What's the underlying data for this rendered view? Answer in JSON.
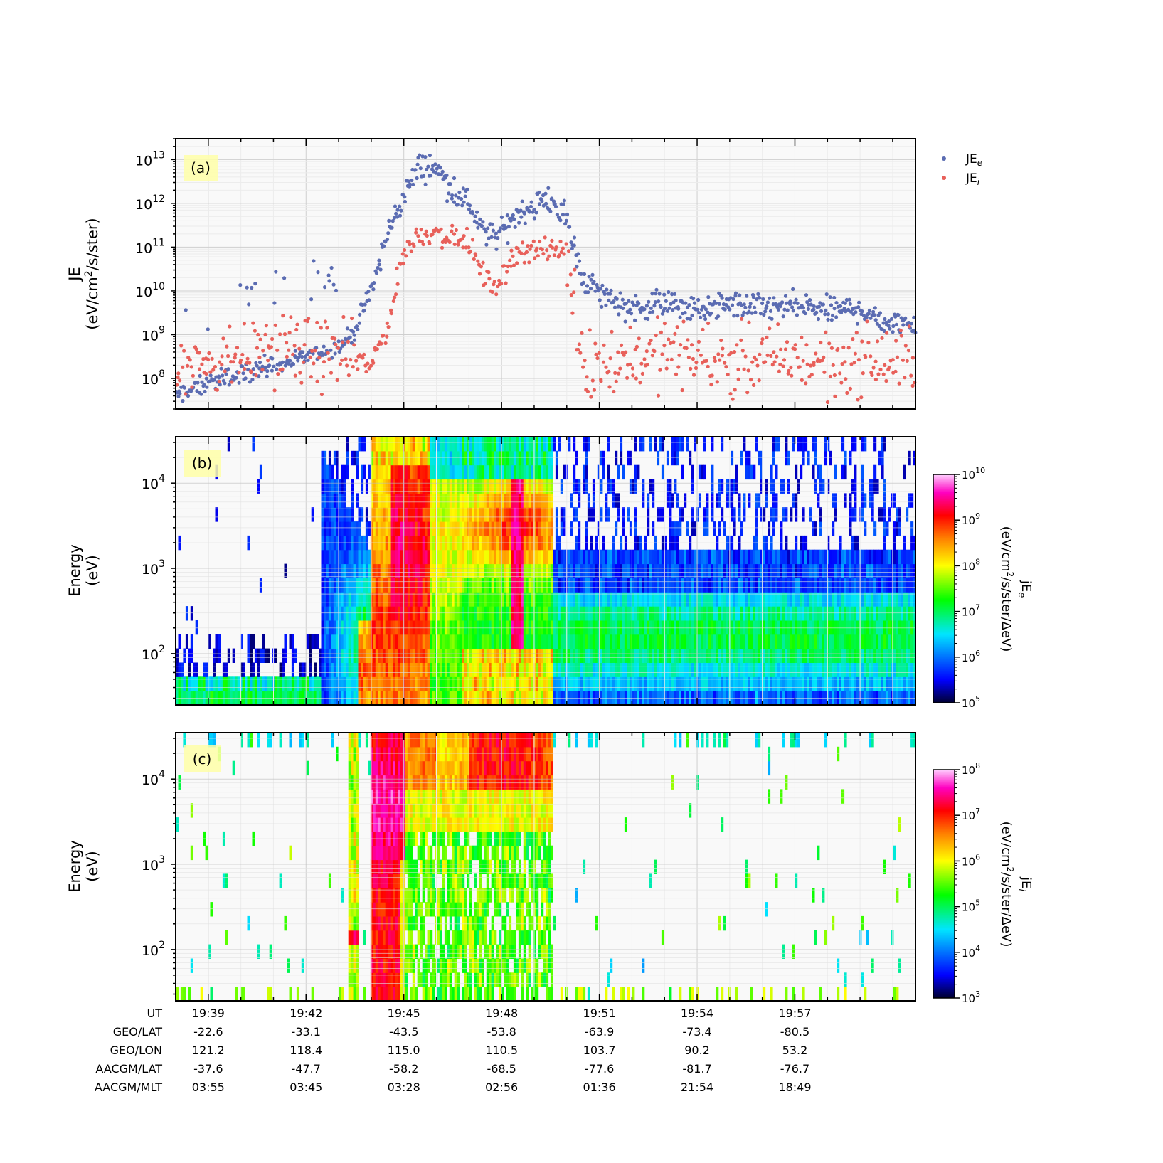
{
  "chart_data": [
    {
      "type": "scatter",
      "panel_label": "(a)",
      "ylabel_line1": "JE",
      "ylabel_line2_prefix": "(eV/cm",
      "ylabel_line2_sup": "2",
      "ylabel_line2_suffix": "/s/ster)",
      "yscale": "log",
      "ylim": [
        20000000.0,
        30000000000000.0
      ],
      "ytick_labels": [
        {
          "base": "10",
          "exp": "8",
          "value": 100000000.0
        },
        {
          "base": "10",
          "exp": "9",
          "value": 1000000000.0
        },
        {
          "base": "10",
          "exp": "10",
          "value": 10000000000.0
        },
        {
          "base": "10",
          "exp": "11",
          "value": 100000000000.0
        },
        {
          "base": "10",
          "exp": "12",
          "value": 1000000000000.0
        },
        {
          "base": "10",
          "exp": "13",
          "value": 10000000000000.0
        }
      ],
      "legend_location": "outside-upper-right",
      "series": [
        {
          "name": "JE_e",
          "legend_base": "JE",
          "legend_sub": "e",
          "color": "#5b6cb2",
          "x_minutes_from_19_39": [
            -1,
            0,
            1,
            2,
            3,
            4,
            4.5,
            5,
            5.5,
            6,
            6.5,
            7,
            7.5,
            8,
            8.5,
            9,
            9.5,
            10,
            10.5,
            11,
            11.5,
            12,
            13,
            14,
            15,
            16,
            17,
            18,
            19,
            20,
            21,
            21.7
          ],
          "log10_values": [
            7.6,
            7.9,
            8.1,
            8.3,
            8.5,
            8.7,
            9.1,
            10.0,
            11.3,
            12.2,
            12.85,
            12.8,
            12.3,
            12.0,
            11.25,
            11.3,
            11.8,
            11.95,
            12.1,
            11.6,
            10.3,
            9.95,
            9.6,
            9.75,
            9.55,
            9.7,
            9.6,
            9.65,
            9.55,
            9.6,
            9.2,
            9.35
          ]
        },
        {
          "name": "JE_i",
          "legend_base": "JE",
          "legend_sub": "i",
          "color": "#e8605a",
          "x_minutes_from_19_39": [
            -1,
            0,
            1,
            2,
            3,
            4,
            4.5,
            5,
            5.5,
            6,
            6.5,
            7,
            7.5,
            8,
            8.5,
            9,
            9.5,
            10,
            10.5,
            11,
            11.5,
            12,
            13,
            14,
            15,
            16,
            17,
            18,
            19,
            20,
            21,
            21.7
          ],
          "log10_values": [
            8.3,
            8.4,
            8.55,
            8.7,
            8.6,
            8.5,
            8.4,
            8.3,
            9.2,
            10.9,
            11.3,
            11.35,
            11.2,
            11.1,
            10.2,
            10.25,
            10.95,
            10.95,
            10.9,
            10.9,
            8.4,
            8.3,
            8.5,
            8.6,
            8.5,
            8.4,
            8.4,
            8.45,
            8.35,
            8.4,
            8.35,
            8.4
          ]
        }
      ]
    },
    {
      "type": "heatmap",
      "panel_label": "(b)",
      "ylabel_line1": "Energy",
      "ylabel_line2": "(eV)",
      "yscale": "log",
      "ylim_eV": [
        25,
        35000
      ],
      "ytick_labels": [
        {
          "base": "10",
          "exp": "2",
          "value": 100
        },
        {
          "base": "10",
          "exp": "3",
          "value": 1000
        },
        {
          "base": "10",
          "exp": "4",
          "value": 10000
        }
      ],
      "colorbar": {
        "label_line1_base": "jE",
        "label_line1_sub": "e",
        "label_line2_prefix": "(eV/cm",
        "label_line2_sup": "2",
        "label_line2_suffix": "/s/ster/ΔeV)",
        "ticks": [
          {
            "base": "10",
            "exp": "5"
          },
          {
            "base": "10",
            "exp": "6"
          },
          {
            "base": "10",
            "exp": "7"
          },
          {
            "base": "10",
            "exp": "8"
          },
          {
            "base": "10",
            "exp": "9"
          },
          {
            "base": "10",
            "exp": "10"
          }
        ],
        "log_range": [
          5,
          10
        ]
      }
    },
    {
      "type": "heatmap",
      "panel_label": "(c)",
      "ylabel_line1": "Energy",
      "ylabel_line2": "(eV)",
      "yscale": "log",
      "ylim_eV": [
        25,
        35000
      ],
      "ytick_labels": [
        {
          "base": "10",
          "exp": "2",
          "value": 100
        },
        {
          "base": "10",
          "exp": "3",
          "value": 1000
        },
        {
          "base": "10",
          "exp": "4",
          "value": 10000
        }
      ],
      "colorbar": {
        "label_line1_base": "jE",
        "label_line1_sub": "i",
        "label_line2_prefix": "(eV/cm",
        "label_line2_sup": "2",
        "label_line2_suffix": "/s/ster/ΔeV)",
        "ticks": [
          {
            "base": "10",
            "exp": "3"
          },
          {
            "base": "10",
            "exp": "4"
          },
          {
            "base": "10",
            "exp": "5"
          },
          {
            "base": "10",
            "exp": "6"
          },
          {
            "base": "10",
            "exp": "7"
          },
          {
            "base": "10",
            "exp": "8"
          }
        ],
        "log_range": [
          3,
          8
        ]
      }
    }
  ],
  "x_axis_table": {
    "row_labels": [
      "UT",
      "GEO/LAT",
      "GEO/LON",
      "AACGM/LAT",
      "AACGM/MLT"
    ],
    "columns": [
      [
        "19:39",
        "-22.6",
        "121.2",
        "-37.6",
        "03:55"
      ],
      [
        "19:42",
        "-33.1",
        "118.4",
        "-47.7",
        "03:45"
      ],
      [
        "19:45",
        "-43.5",
        "115.0",
        "-58.2",
        "03:28"
      ],
      [
        "19:48",
        "-53.8",
        "110.5",
        "-68.5",
        "02:56"
      ],
      [
        "19:51",
        "-63.9",
        "103.7",
        "-77.6",
        "01:36"
      ],
      [
        "19:54",
        "-73.4",
        "90.2",
        "-81.7",
        "21:54"
      ],
      [
        "19:57",
        "-80.5",
        "53.2",
        "-76.7",
        "18:49"
      ]
    ],
    "x_minutes_from_19_39": [
      0,
      3,
      6,
      9,
      12,
      15,
      18
    ],
    "xlim_minutes_from_19_39": [
      -1,
      21.7
    ]
  }
}
